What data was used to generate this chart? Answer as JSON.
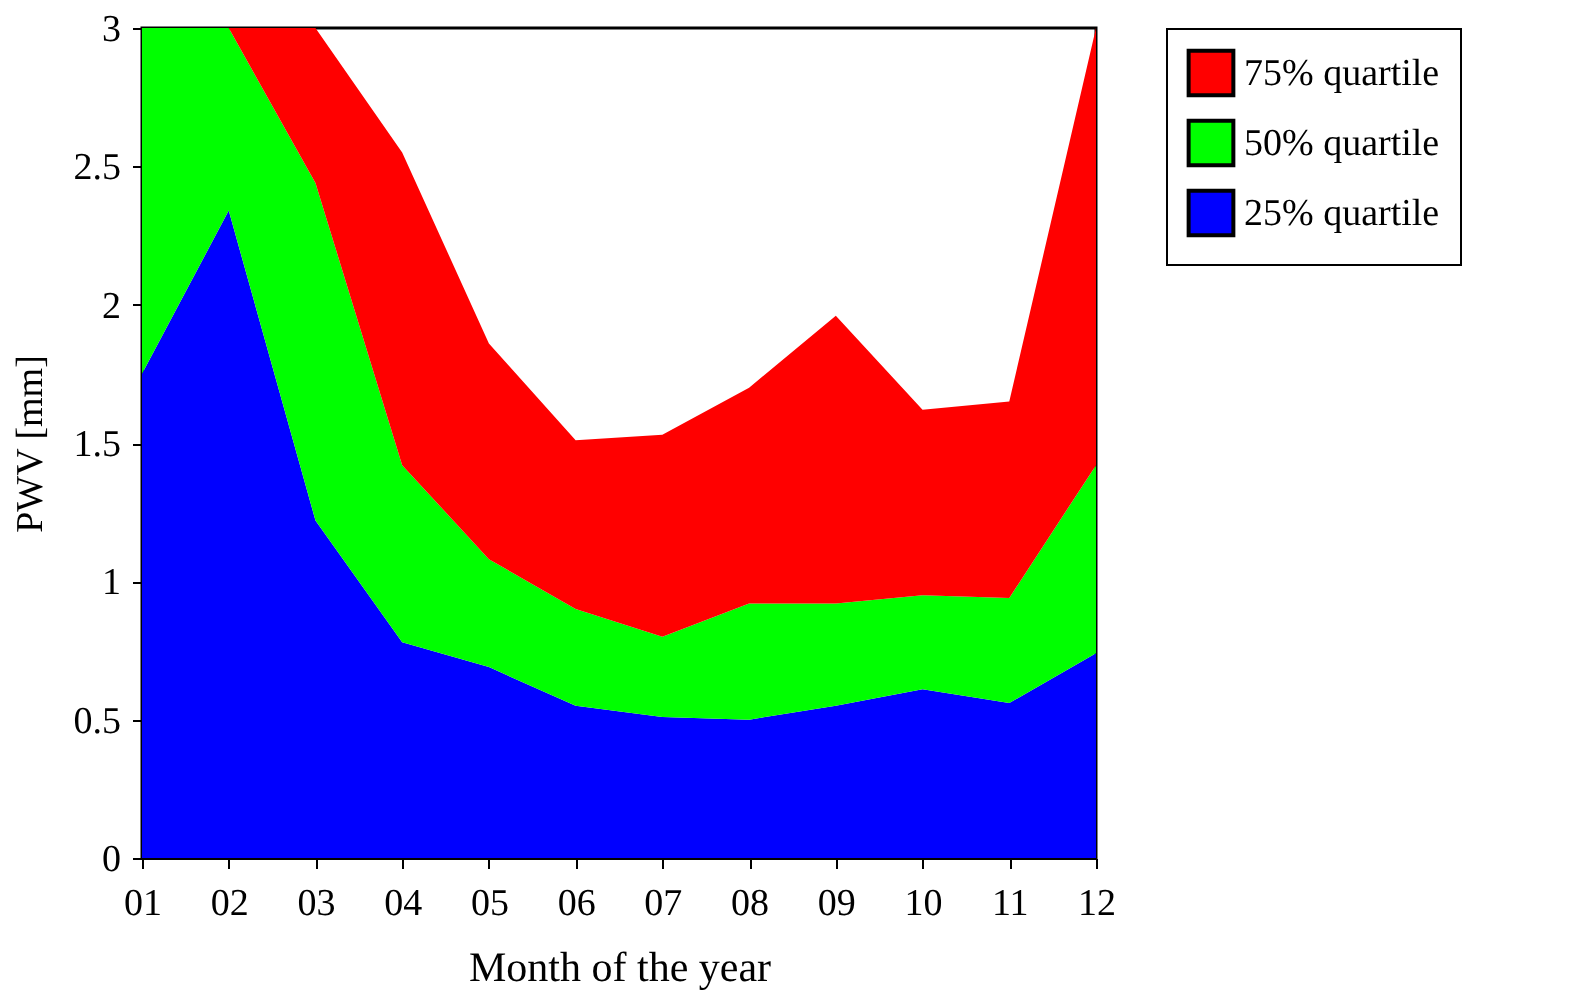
{
  "chart_data": {
    "type": "area",
    "stacked": true,
    "xlabel": "Month of the year",
    "ylabel": "PWV [mm]",
    "categories": [
      "01",
      "02",
      "03",
      "04",
      "05",
      "06",
      "07",
      "08",
      "09",
      "10",
      "11",
      "12"
    ],
    "series": [
      {
        "name": "25% quartile",
        "color": "#0000ff",
        "values": [
          1.75,
          2.34,
          1.22,
          0.78,
          0.69,
          0.55,
          0.51,
          0.5,
          0.55,
          0.61,
          0.56,
          0.74
        ]
      },
      {
        "name": "50% quartile",
        "color": "#00ff00",
        "values": [
          1.25,
          0.66,
          1.22,
          0.64,
          0.39,
          0.35,
          0.29,
          0.42,
          0.37,
          0.34,
          0.38,
          0.68
        ]
      },
      {
        "name": "75% quartile",
        "color": "#ff0000",
        "values": [
          0,
          0,
          0.56,
          1.13,
          0.78,
          0.61,
          0.73,
          0.78,
          1.04,
          0.67,
          0.71,
          1.58
        ]
      }
    ],
    "ylim": [
      0,
      3
    ],
    "yticks": [
      0,
      0.5,
      1,
      1.5,
      2,
      2.5,
      3
    ],
    "grid": false,
    "legend": "top right"
  }
}
